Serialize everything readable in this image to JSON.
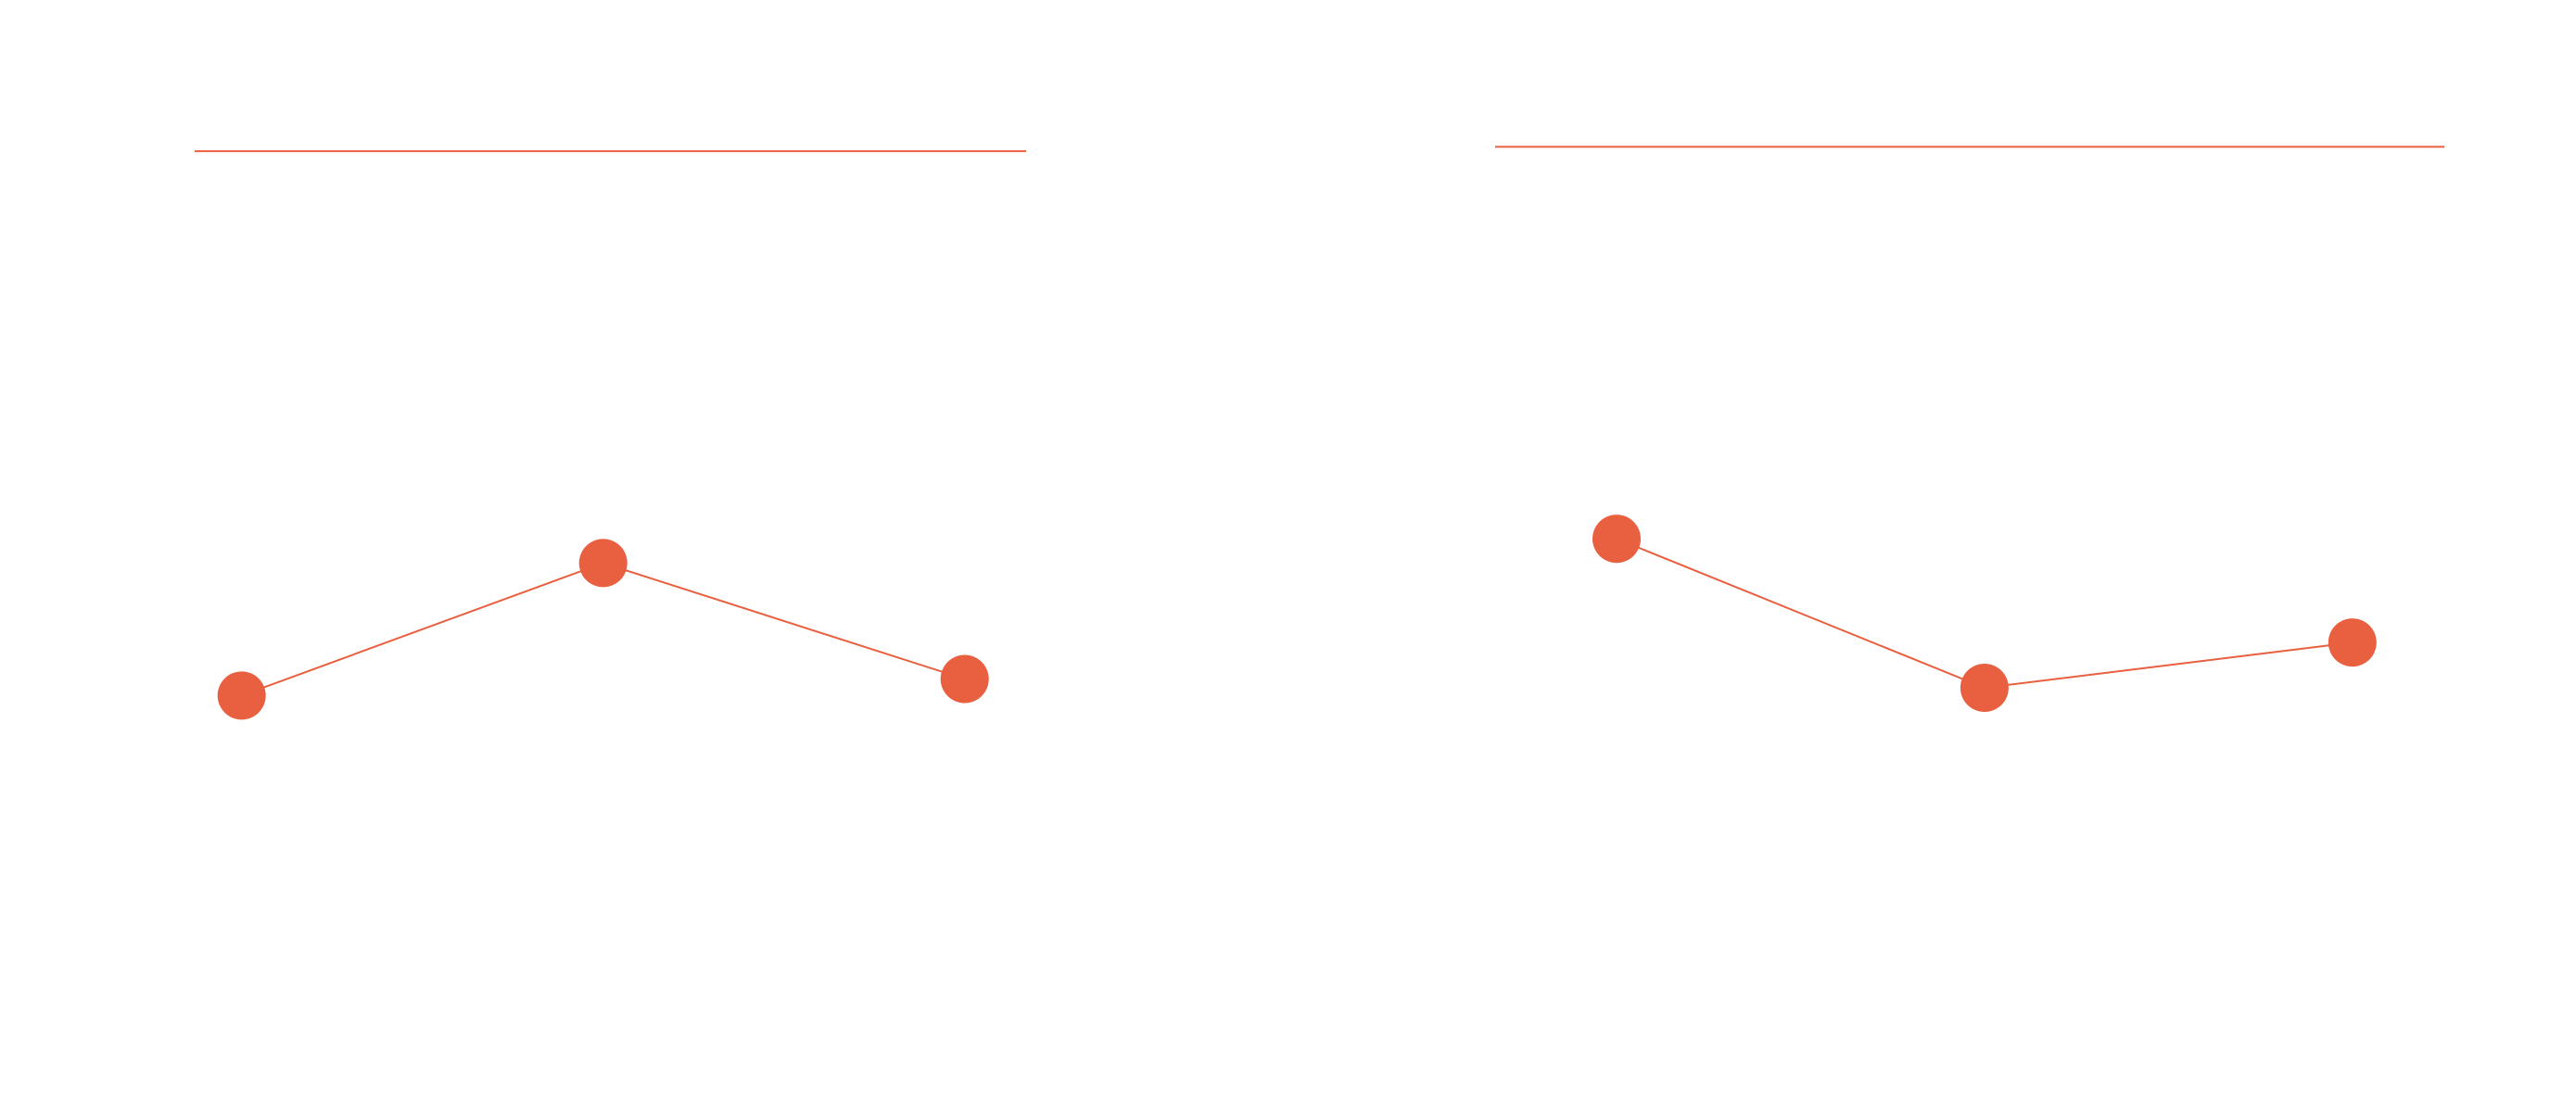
{
  "chart_data": [
    {
      "type": "line",
      "title": "",
      "xlabel": "",
      "ylabel": "",
      "grid": false,
      "legend": "none",
      "color": "#E8603F",
      "x": [
        0,
        1,
        2
      ],
      "xlim": [
        -0.13,
        2.17
      ],
      "ylim": [
        0,
        10
      ],
      "reference_line": 8.63,
      "values": [
        3.7,
        4.9,
        3.85
      ],
      "series": [
        {
          "values": [
            3.7,
            4.9,
            3.85
          ]
        }
      ]
    },
    {
      "type": "line",
      "title": "",
      "xlabel": "",
      "ylabel": "",
      "grid": false,
      "legend": "none",
      "color": "#E8603F",
      "x": [
        0,
        1,
        2
      ],
      "xlim": [
        -0.33,
        2.25
      ],
      "ylim": [
        0,
        10
      ],
      "reference_line": 8.67,
      "values": [
        5.12,
        3.77,
        4.18
      ],
      "series": [
        {
          "values": [
            5.12,
            3.77,
            4.18
          ]
        }
      ]
    }
  ]
}
